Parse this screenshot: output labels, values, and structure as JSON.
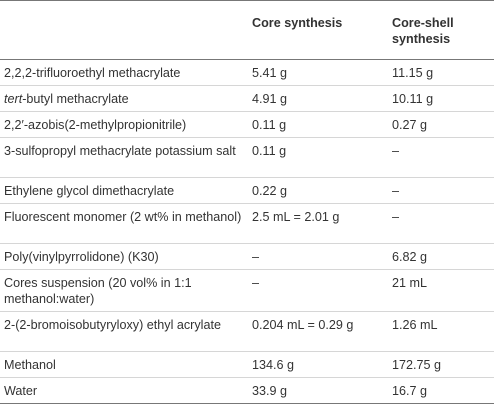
{
  "table": {
    "headers": [
      "",
      "Core synthesis",
      "Core-shell synthesis"
    ],
    "rows": [
      {
        "italic_prefix": "",
        "label": "2,2,2-trifluoroethyl methacrylate",
        "core": "5.41 g",
        "core_shell": "11.15 g"
      },
      {
        "italic_prefix": "tert",
        "label": "-butyl methacrylate",
        "core": "4.91 g",
        "core_shell": "10.11 g"
      },
      {
        "italic_prefix": "",
        "label": "2,2′-azobis(2-methylpropionitrile)",
        "core": "0.11 g",
        "core_shell": "0.27 g"
      },
      {
        "italic_prefix": "",
        "label": "3-sulfopropyl methacrylate potassium salt",
        "core": "0.11 g",
        "core_shell": "–"
      },
      {
        "italic_prefix": "",
        "label": "Ethylene glycol dimethacrylate",
        "core": "0.22 g",
        "core_shell": "–"
      },
      {
        "italic_prefix": "",
        "label": "Fluorescent monomer (2 wt% in methanol)",
        "core": "2.5 mL = 2.01 g",
        "core_shell": "–"
      },
      {
        "italic_prefix": "",
        "label": "Poly(vinylpyrrolidone) (K30)",
        "core": "–",
        "core_shell": "6.82 g"
      },
      {
        "italic_prefix": "",
        "label": "Cores suspension (20 vol% in 1:1 methanol:water)",
        "core": "–",
        "core_shell": "21 mL"
      },
      {
        "italic_prefix": "",
        "label": "2-(2-bromoisobutyryloxy) ethyl acrylate",
        "core": "0.204 mL = 0.29 g",
        "core_shell": "1.26 mL"
      },
      {
        "italic_prefix": "",
        "label": "Methanol",
        "core": "134.6 g",
        "core_shell": "172.75 g"
      },
      {
        "italic_prefix": "",
        "label": "Water",
        "core": "33.9 g",
        "core_shell": "16.7 g"
      }
    ]
  }
}
